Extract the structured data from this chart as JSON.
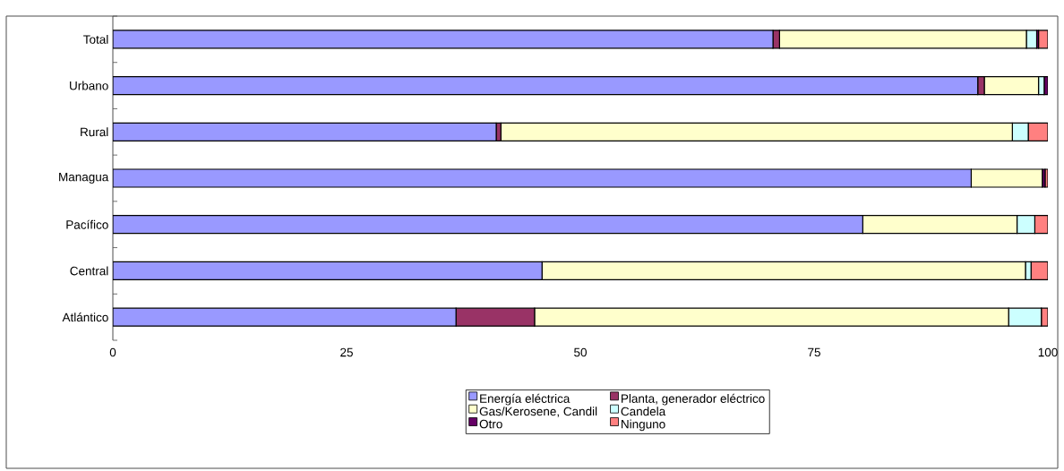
{
  "chart_data": {
    "type": "bar",
    "orientation": "horizontal",
    "stacked": true,
    "categories": [
      "Total",
      "Urbano",
      "Rural",
      "Managua",
      "Pacífico",
      "Central",
      "Atlántico"
    ],
    "series": [
      {
        "name": "Energía eléctrica",
        "color": "#9999ff",
        "values": [
          70.6,
          92.5,
          41.0,
          91.8,
          80.2,
          45.9,
          36.7
        ]
      },
      {
        "name": "Planta, generador eléctrico",
        "color": "#993366",
        "values": [
          0.7,
          0.7,
          0.5,
          0,
          0,
          0,
          8.4
        ]
      },
      {
        "name": "Gas/Kerosene, Candil",
        "color": "#ffffcc",
        "values": [
          26.4,
          5.8,
          54.7,
          7.6,
          16.5,
          51.7,
          50.7
        ]
      },
      {
        "name": "Candela",
        "color": "#ccffff",
        "values": [
          1.1,
          0.6,
          1.7,
          0,
          1.9,
          0.6,
          3.5
        ]
      },
      {
        "name": "Otro",
        "color": "#660066",
        "values": [
          0.2,
          0.4,
          0,
          0.3,
          0,
          0,
          0
        ]
      },
      {
        "name": "Ninguno",
        "color": "#ff8080",
        "values": [
          1.0,
          0,
          2.1,
          0.3,
          1.4,
          1.8,
          0.7
        ]
      }
    ],
    "xlim": [
      0,
      100
    ],
    "xticks": [
      0,
      25,
      50,
      75,
      100
    ],
    "legend": "bottom",
    "grid": false
  }
}
